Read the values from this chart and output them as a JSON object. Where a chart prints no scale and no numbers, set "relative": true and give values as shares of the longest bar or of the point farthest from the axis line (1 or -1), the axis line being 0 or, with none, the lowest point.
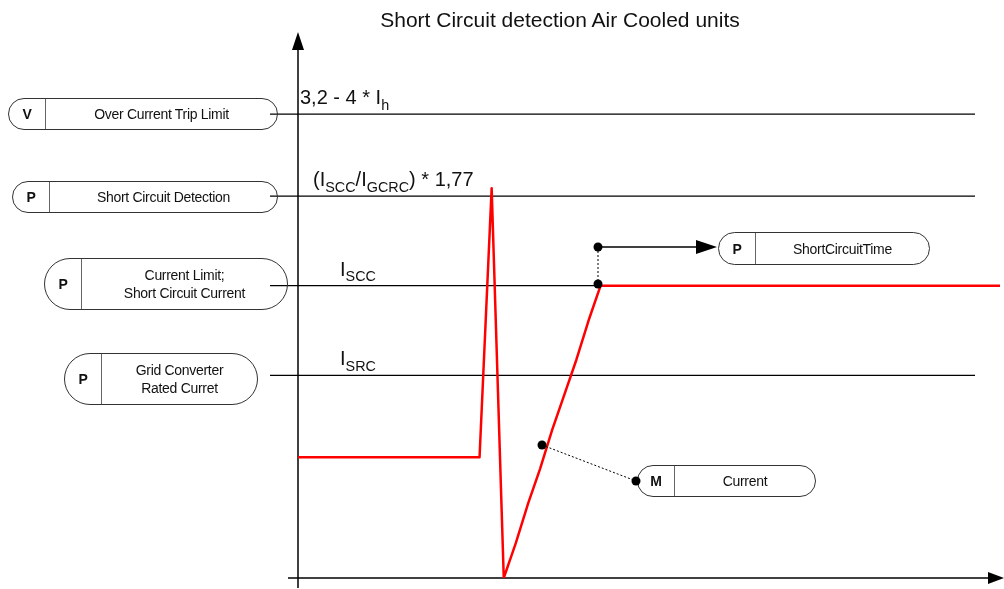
{
  "chart_data": {
    "type": "line",
    "title": "Short Circuit detection Air Cooled units",
    "relative": true,
    "tick_labels": false,
    "legend": false,
    "marker": "none",
    "line_style": "solid",
    "categories": [
      null,
      null,
      null,
      null,
      null,
      null,
      null,
      null,
      null,
      null,
      null,
      null,
      null,
      null,
      null,
      null,
      null,
      null,
      null,
      null,
      null,
      null,
      null,
      null,
      null,
      null,
      null,
      null,
      null,
      null,
      null,
      null,
      null,
      null,
      null,
      null,
      null,
      null,
      null,
      null,
      null,
      null,
      null,
      null,
      null,
      null,
      null,
      null,
      null,
      null,
      null,
      null,
      null,
      null,
      null,
      null,
      null,
      null,
      null
    ],
    "series": [
      {
        "color": "#ff0000",
        "values": [
          0.31,
          0.31,
          0.31,
          0.31,
          0.31,
          0.31,
          0.31,
          0.31,
          0.31,
          0.31,
          0.31,
          0.31,
          0.31,
          0.31,
          0.31,
          0.31,
          1,
          0,
          0.09,
          0.19,
          0.28,
          0.38,
          0.47,
          0.56,
          0.66,
          0.75,
          0.75,
          0.75,
          0.75,
          0.75,
          0.75,
          0.75,
          0.75,
          0.75,
          0.75,
          0.75,
          0.75,
          0.75,
          0.75,
          0.75,
          0.75,
          0.75,
          0.75,
          0.75,
          0.75,
          0.75,
          0.75,
          0.75,
          0.75,
          0.75,
          0.75,
          0.75,
          0.75,
          0.75,
          0.75,
          0.75,
          0.75,
          0.75,
          0.75
        ]
      }
    ],
    "ref_lines": [
      {
        "axis": "y",
        "value": 1.19,
        "label": "3,2 - 4 * I$_{h}$",
        "color": "#000000"
      },
      {
        "axis": "y",
        "value": 0.98,
        "label": "(I$_{SCC}$/I$_{GCRC}$) * 1,77",
        "color": "#000000"
      },
      {
        "axis": "y",
        "value": 0.75,
        "label": "I$_{SCC}$",
        "color": "#000000"
      },
      {
        "axis": "y",
        "value": 0.52,
        "label": "I$_{SRC}$",
        "color": "#000000"
      }
    ],
    "annotations": [
      "V",
      "Over Current Trip Limit",
      "P",
      "Short Circuit Detection",
      "P",
      "Current Limit;\nShort Circuit Current",
      "P",
      "Grid Converter\nRated Curret",
      "P",
      "ShortCircuitTime",
      "M",
      "Current"
    ]
  }
}
